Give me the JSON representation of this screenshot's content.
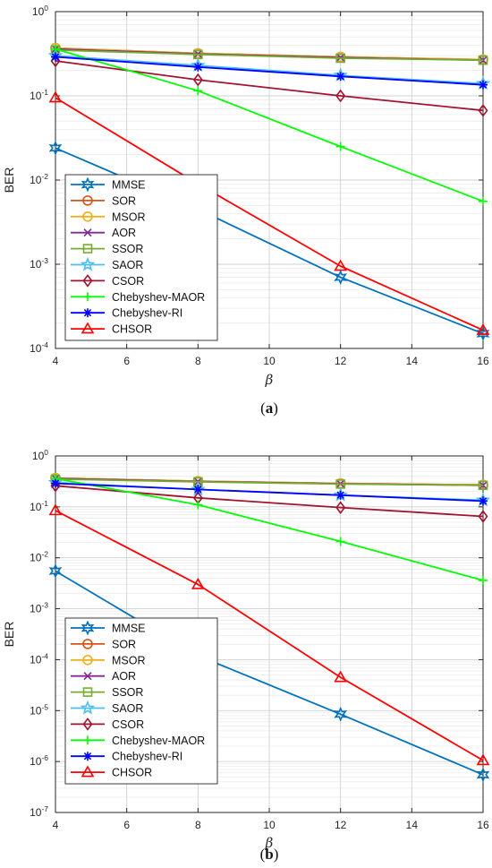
{
  "chart_data": [
    {
      "type": "line",
      "caption": "a",
      "ylabel": "BER",
      "xlabel": "β",
      "yscale": "log",
      "xlim": [
        4,
        16
      ],
      "ylim": [
        0.0001,
        1
      ],
      "x": [
        4,
        8,
        12,
        16
      ],
      "xticks": [
        4,
        6,
        8,
        10,
        12,
        14,
        16
      ],
      "grid": true,
      "legend_position": "bottom-left",
      "series": [
        {
          "name": "MMSE",
          "color": "#0072bd",
          "marker": "star",
          "values": [
            0.024,
            0.0045,
            0.0007,
            0.00015
          ]
        },
        {
          "name": "SOR",
          "color": "#d95319",
          "marker": "circle",
          "values": [
            0.37,
            0.32,
            0.29,
            0.27
          ]
        },
        {
          "name": "MSOR",
          "color": "#edb120",
          "marker": "circle",
          "values": [
            0.37,
            0.32,
            0.29,
            0.27
          ]
        },
        {
          "name": "AOR",
          "color": "#7e2f8e",
          "marker": "x",
          "values": [
            0.36,
            0.315,
            0.285,
            0.265
          ]
        },
        {
          "name": "SSOR",
          "color": "#77ac30",
          "marker": "square",
          "values": [
            0.35,
            0.31,
            0.28,
            0.265
          ]
        },
        {
          "name": "SAOR",
          "color": "#4dbeee",
          "marker": "pentagram",
          "values": [
            0.3,
            0.23,
            0.175,
            0.14
          ]
        },
        {
          "name": "CSOR",
          "color": "#a2142f",
          "marker": "diamond",
          "values": [
            0.26,
            0.155,
            0.1,
            0.067
          ]
        },
        {
          "name": "Chebyshev-MAOR",
          "color": "#00ff00",
          "marker": "plus",
          "values": [
            0.36,
            0.115,
            0.025,
            0.0056
          ]
        },
        {
          "name": "Chebyshev-RI",
          "color": "#0000ff",
          "marker": "asterisk",
          "values": [
            0.29,
            0.22,
            0.17,
            0.135
          ]
        },
        {
          "name": "CHSOR",
          "color": "#ff0000",
          "marker": "triangle",
          "values": [
            0.095,
            0.009,
            0.00095,
            0.000165
          ]
        }
      ]
    },
    {
      "type": "line",
      "caption": "b",
      "ylabel": "BER",
      "xlabel": "β",
      "yscale": "log",
      "xlim": [
        4,
        16
      ],
      "ylim": [
        1e-07,
        1
      ],
      "x": [
        4,
        8,
        12,
        16
      ],
      "xticks": [
        4,
        6,
        8,
        10,
        12,
        14,
        16
      ],
      "grid": true,
      "legend_position": "bottom-left",
      "series": [
        {
          "name": "MMSE",
          "color": "#0072bd",
          "marker": "star",
          "values": [
            0.0055,
            0.00012,
            8.5e-06,
            5.5e-07
          ]
        },
        {
          "name": "SOR",
          "color": "#d95319",
          "marker": "circle",
          "values": [
            0.37,
            0.32,
            0.29,
            0.27
          ]
        },
        {
          "name": "MSOR",
          "color": "#edb120",
          "marker": "circle",
          "values": [
            0.37,
            0.32,
            0.29,
            0.27
          ]
        },
        {
          "name": "AOR",
          "color": "#7e2f8e",
          "marker": "x",
          "values": [
            0.36,
            0.315,
            0.285,
            0.265
          ]
        },
        {
          "name": "SSOR",
          "color": "#77ac30",
          "marker": "square",
          "values": [
            0.35,
            0.31,
            0.28,
            0.265
          ]
        },
        {
          "name": "SAOR",
          "color": "#4dbeee",
          "marker": "pentagram",
          "values": [
            0.3,
            0.22,
            0.17,
            0.135
          ]
        },
        {
          "name": "CSOR",
          "color": "#a2142f",
          "marker": "diamond",
          "values": [
            0.26,
            0.15,
            0.097,
            0.065
          ]
        },
        {
          "name": "Chebyshev-MAOR",
          "color": "#00ff00",
          "marker": "plus",
          "values": [
            0.36,
            0.11,
            0.021,
            0.0036
          ]
        },
        {
          "name": "Chebyshev-RI",
          "color": "#0000ff",
          "marker": "asterisk",
          "values": [
            0.29,
            0.22,
            0.17,
            0.13
          ]
        },
        {
          "name": "CHSOR",
          "color": "#ff0000",
          "marker": "triangle",
          "values": [
            0.085,
            0.003,
            4.5e-05,
            1.05e-06
          ]
        }
      ]
    }
  ]
}
